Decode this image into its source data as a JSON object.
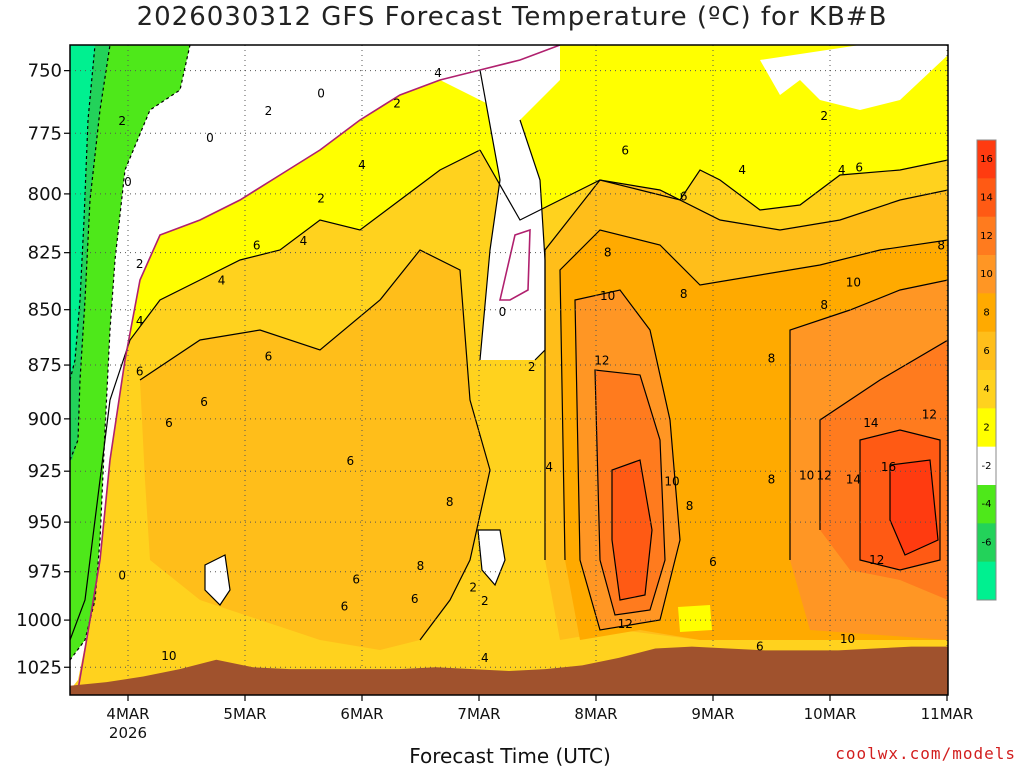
{
  "chart_data": {
    "type": "heatmap",
    "title": "2026030312 GFS Forecast Temperature (ºC) for KB#B",
    "xlabel": "Forecast Time (UTC)",
    "ylabel": "",
    "x_ticks": [
      "4MAR",
      "5MAR",
      "6MAR",
      "7MAR",
      "8MAR",
      "9MAR",
      "10MAR",
      "11MAR"
    ],
    "x_year": "2026",
    "y_ticks": [
      750,
      775,
      800,
      825,
      850,
      875,
      900,
      925,
      950,
      975,
      1000,
      1025
    ],
    "ylim": [
      1040,
      740
    ],
    "y_scale": "log",
    "colorbar": {
      "ticks": [
        16,
        14,
        12,
        10,
        8,
        6,
        4,
        2,
        -2,
        -4,
        -6
      ],
      "bands": [
        {
          "min": 16,
          "max": 18,
          "color": "#ff3b10"
        },
        {
          "min": 14,
          "max": 16,
          "color": "#ff5a14"
        },
        {
          "min": 12,
          "max": 14,
          "color": "#ff7b1e"
        },
        {
          "min": 10,
          "max": 12,
          "color": "#ff9624"
        },
        {
          "min": 8,
          "max": 10,
          "color": "#ffaa00"
        },
        {
          "min": 6,
          "max": 8,
          "color": "#ffbe1a"
        },
        {
          "min": 4,
          "max": 6,
          "color": "#ffd21e"
        },
        {
          "min": 2,
          "max": 4,
          "color": "#ffff00"
        },
        {
          "min": -2,
          "max": 2,
          "color": "#ffffff"
        },
        {
          "min": -4,
          "max": -2,
          "color": "#4ee81a"
        },
        {
          "min": -6,
          "max": -4,
          "color": "#23d25a"
        },
        {
          "min": -8,
          "max": -6,
          "color": "#00f090"
        }
      ]
    },
    "terrain": {
      "color": "#a0522d",
      "surface_pressure": [
        1035,
        1033,
        1030,
        1026,
        1021,
        1025,
        1026,
        1026,
        1026,
        1026,
        1025,
        1026,
        1027,
        1026,
        1024,
        1020,
        1015,
        1014,
        1015,
        1016,
        1016,
        1016,
        1015,
        1014,
        1014
      ]
    },
    "contour_labels": [
      {
        "v": "2",
        "x": 3.95,
        "p": 770
      },
      {
        "v": "0",
        "x": 4.0,
        "p": 795
      },
      {
        "v": "0",
        "x": 4.7,
        "p": 777
      },
      {
        "v": "0",
        "x": 5.65,
        "p": 759
      },
      {
        "v": "2",
        "x": 5.2,
        "p": 766
      },
      {
        "v": "2",
        "x": 5.65,
        "p": 802
      },
      {
        "v": "2",
        "x": 4.1,
        "p": 830
      },
      {
        "v": "4",
        "x": 4.1,
        "p": 855
      },
      {
        "v": "4",
        "x": 4.8,
        "p": 837
      },
      {
        "v": "4",
        "x": 5.5,
        "p": 820
      },
      {
        "v": "4",
        "x": 6.0,
        "p": 788
      },
      {
        "v": "2",
        "x": 6.3,
        "p": 763
      },
      {
        "v": "4",
        "x": 6.65,
        "p": 751
      },
      {
        "v": "6",
        "x": 5.1,
        "p": 822
      },
      {
        "v": "6",
        "x": 4.1,
        "p": 878
      },
      {
        "v": "6",
        "x": 4.65,
        "p": 892
      },
      {
        "v": "6",
        "x": 4.35,
        "p": 902
      },
      {
        "v": "6",
        "x": 5.2,
        "p": 871
      },
      {
        "v": "6",
        "x": 5.9,
        "p": 920
      },
      {
        "v": "6",
        "x": 5.95,
        "p": 979
      },
      {
        "v": "6",
        "x": 5.85,
        "p": 993
      },
      {
        "v": "8",
        "x": 6.75,
        "p": 940
      },
      {
        "v": "8",
        "x": 6.5,
        "p": 972
      },
      {
        "v": "6",
        "x": 6.45,
        "p": 989
      },
      {
        "v": "2",
        "x": 6.95,
        "p": 983
      },
      {
        "v": "2",
        "x": 7.05,
        "p": 990
      },
      {
        "v": "4",
        "x": 7.05,
        "p": 1020
      },
      {
        "v": "0",
        "x": 7.2,
        "p": 851
      },
      {
        "v": "2",
        "x": 7.45,
        "p": 876
      },
      {
        "v": "4",
        "x": 7.6,
        "p": 923
      },
      {
        "v": "6",
        "x": 8.25,
        "p": 782
      },
      {
        "v": "6",
        "x": 8.75,
        "p": 801
      },
      {
        "v": "8",
        "x": 8.1,
        "p": 825
      },
      {
        "v": "8",
        "x": 8.75,
        "p": 843
      },
      {
        "v": "10",
        "x": 8.1,
        "p": 844
      },
      {
        "v": "12",
        "x": 8.05,
        "p": 873
      },
      {
        "v": "10",
        "x": 8.65,
        "p": 930
      },
      {
        "v": "8",
        "x": 8.8,
        "p": 942
      },
      {
        "v": "6",
        "x": 9.0,
        "p": 970
      },
      {
        "v": "12",
        "x": 8.25,
        "p": 1002
      },
      {
        "v": "6",
        "x": 9.4,
        "p": 1014
      },
      {
        "v": "4",
        "x": 9.25,
        "p": 790
      },
      {
        "v": "2",
        "x": 9.95,
        "p": 768
      },
      {
        "v": "4",
        "x": 10.1,
        "p": 790
      },
      {
        "v": "6",
        "x": 10.25,
        "p": 789
      },
      {
        "v": "8",
        "x": 9.5,
        "p": 872
      },
      {
        "v": "8",
        "x": 9.5,
        "p": 929
      },
      {
        "v": "8",
        "x": 9.95,
        "p": 848
      },
      {
        "v": "10",
        "x": 10.2,
        "p": 838
      },
      {
        "v": "10",
        "x": 9.8,
        "p": 927
      },
      {
        "v": "12",
        "x": 9.95,
        "p": 927
      },
      {
        "v": "14",
        "x": 10.35,
        "p": 902
      },
      {
        "v": "14",
        "x": 10.2,
        "p": 929
      },
      {
        "v": "16",
        "x": 10.5,
        "p": 923
      },
      {
        "v": "12",
        "x": 10.85,
        "p": 898
      },
      {
        "v": "8",
        "x": 10.95,
        "p": 822
      },
      {
        "v": "12",
        "x": 10.4,
        "p": 969
      },
      {
        "v": "10",
        "x": 10.15,
        "p": 1010
      },
      {
        "v": "0",
        "x": 3.95,
        "p": 977
      },
      {
        "v": "10",
        "x": 4.35,
        "p": 1019
      }
    ]
  },
  "colors": {
    "cold_line": "#b0206e",
    "contour": "#000000"
  },
  "credit": "coolwx.com/models"
}
